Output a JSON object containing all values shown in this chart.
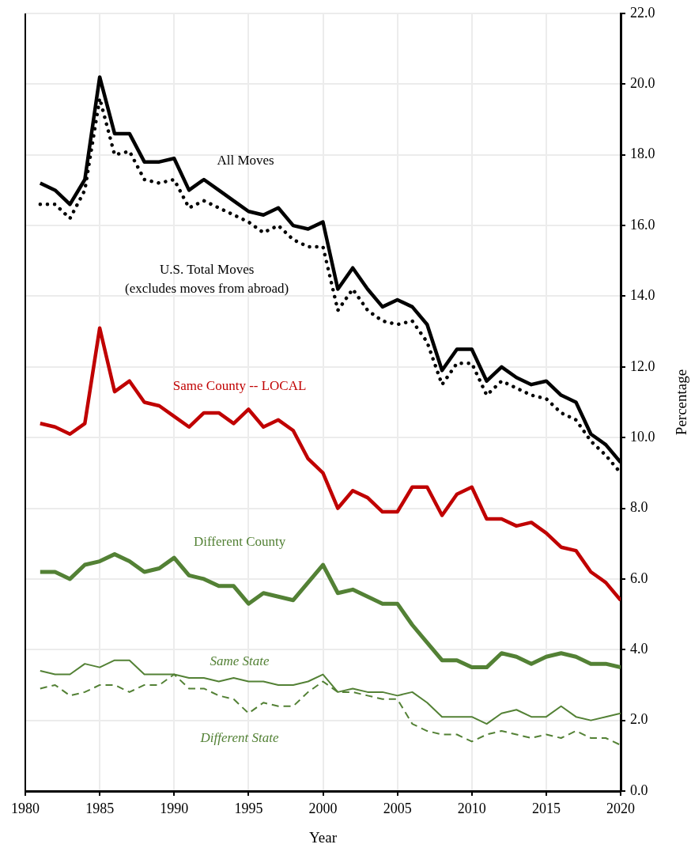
{
  "chart_data": {
    "type": "line",
    "xlabel": "Year",
    "ylabel": "Percentage",
    "x": [
      1981,
      1982,
      1983,
      1984,
      1985,
      1986,
      1987,
      1988,
      1989,
      1990,
      1991,
      1992,
      1993,
      1994,
      1995,
      1996,
      1997,
      1998,
      1999,
      2000,
      2001,
      2002,
      2003,
      2004,
      2005,
      2006,
      2007,
      2008,
      2009,
      2010,
      2011,
      2012,
      2013,
      2014,
      2015,
      2016,
      2017,
      2018,
      2019,
      2020
    ],
    "xlim": [
      1980,
      2020
    ],
    "xticks": [
      1980,
      1985,
      1990,
      1995,
      2000,
      2005,
      2010,
      2015,
      2020
    ],
    "ylim": [
      0,
      22
    ],
    "yticks": [
      {
        "value": 0,
        "label": "0.0"
      },
      {
        "value": 2,
        "label": "2.0"
      },
      {
        "value": 4,
        "label": "4.0"
      },
      {
        "value": 6,
        "label": "6.0"
      },
      {
        "value": 8,
        "label": "8.0"
      },
      {
        "value": 10,
        "label": "10.0"
      },
      {
        "value": 12,
        "label": "12.0"
      },
      {
        "value": 14,
        "label": "14.0"
      },
      {
        "value": 16,
        "label": "16.0"
      },
      {
        "value": 18,
        "label": "18.0"
      },
      {
        "value": 20,
        "label": "20.0"
      },
      {
        "value": 22,
        "label": "22.0"
      }
    ],
    "grid": true,
    "legend": false,
    "marker": "none",
    "series": [
      {
        "name": "All Moves",
        "color": "#000000",
        "line_style": "solid",
        "values": [
          17.2,
          17.0,
          16.6,
          17.3,
          20.2,
          18.6,
          18.6,
          17.8,
          17.8,
          17.9,
          17.0,
          17.3,
          17.0,
          16.7,
          16.4,
          16.3,
          16.5,
          16.0,
          15.9,
          16.1,
          14.2,
          14.8,
          14.2,
          13.7,
          13.9,
          13.7,
          13.2,
          11.9,
          12.5,
          12.5,
          11.6,
          12.0,
          11.7,
          11.5,
          11.6,
          11.2,
          11.0,
          10.1,
          9.8,
          9.3
        ]
      },
      {
        "name": "U.S. Total Moves\n(excludes moves from abroad)",
        "color": "#000000",
        "line_style": "dotted",
        "values": [
          16.6,
          16.6,
          16.2,
          17.0,
          19.6,
          18.0,
          18.1,
          17.3,
          17.2,
          17.3,
          16.5,
          16.7,
          16.5,
          16.3,
          16.1,
          15.8,
          16.0,
          15.6,
          15.4,
          15.4,
          13.6,
          14.2,
          13.6,
          13.3,
          13.2,
          13.3,
          12.7,
          11.5,
          12.1,
          12.1,
          11.2,
          11.6,
          11.4,
          11.2,
          11.1,
          10.7,
          10.5,
          9.9,
          9.5,
          9.0
        ]
      },
      {
        "name": "Same County -- LOCAL",
        "color": "#c00000",
        "line_style": "solid",
        "values": [
          10.4,
          10.3,
          10.1,
          10.4,
          13.1,
          11.3,
          11.6,
          11.0,
          10.9,
          10.6,
          10.3,
          10.7,
          10.7,
          10.4,
          10.8,
          10.3,
          10.5,
          10.2,
          9.4,
          9.0,
          8.0,
          8.5,
          8.3,
          7.9,
          7.9,
          8.6,
          8.6,
          7.8,
          8.4,
          8.6,
          7.7,
          7.7,
          7.5,
          7.6,
          7.3,
          6.9,
          6.8,
          6.2,
          5.9,
          5.4
        ]
      },
      {
        "name": "Different County",
        "color": "#538135",
        "line_style": "solid",
        "values": [
          6.2,
          6.2,
          6.0,
          6.4,
          6.5,
          6.7,
          6.5,
          6.2,
          6.3,
          6.6,
          6.1,
          6.0,
          5.8,
          5.8,
          5.3,
          5.6,
          5.5,
          5.4,
          5.9,
          6.4,
          5.6,
          5.7,
          5.5,
          5.3,
          5.3,
          4.7,
          4.2,
          3.7,
          3.7,
          3.5,
          3.5,
          3.9,
          3.8,
          3.6,
          3.8,
          3.9,
          3.8,
          3.6,
          3.6,
          3.5
        ]
      },
      {
        "name": "Same State",
        "color": "#538135",
        "line_style": "solid",
        "values": [
          3.4,
          3.3,
          3.3,
          3.6,
          3.5,
          3.7,
          3.7,
          3.3,
          3.3,
          3.3,
          3.2,
          3.2,
          3.1,
          3.2,
          3.1,
          3.1,
          3.0,
          3.0,
          3.1,
          3.3,
          2.8,
          2.9,
          2.8,
          2.8,
          2.7,
          2.8,
          2.5,
          2.1,
          2.1,
          2.1,
          1.9,
          2.2,
          2.3,
          2.1,
          2.1,
          2.4,
          2.1,
          2.0,
          2.1,
          2.2
        ]
      },
      {
        "name": "Different State",
        "color": "#538135",
        "line_style": "dashed",
        "values": [
          2.9,
          3.0,
          2.7,
          2.8,
          3.0,
          3.0,
          2.8,
          3.0,
          3.0,
          3.3,
          2.9,
          2.9,
          2.7,
          2.6,
          2.2,
          2.5,
          2.4,
          2.4,
          2.8,
          3.1,
          2.8,
          2.8,
          2.7,
          2.6,
          2.6,
          1.9,
          1.7,
          1.6,
          1.6,
          1.4,
          1.6,
          1.7,
          1.6,
          1.5,
          1.6,
          1.5,
          1.7,
          1.5,
          1.5,
          1.3
        ]
      }
    ]
  }
}
